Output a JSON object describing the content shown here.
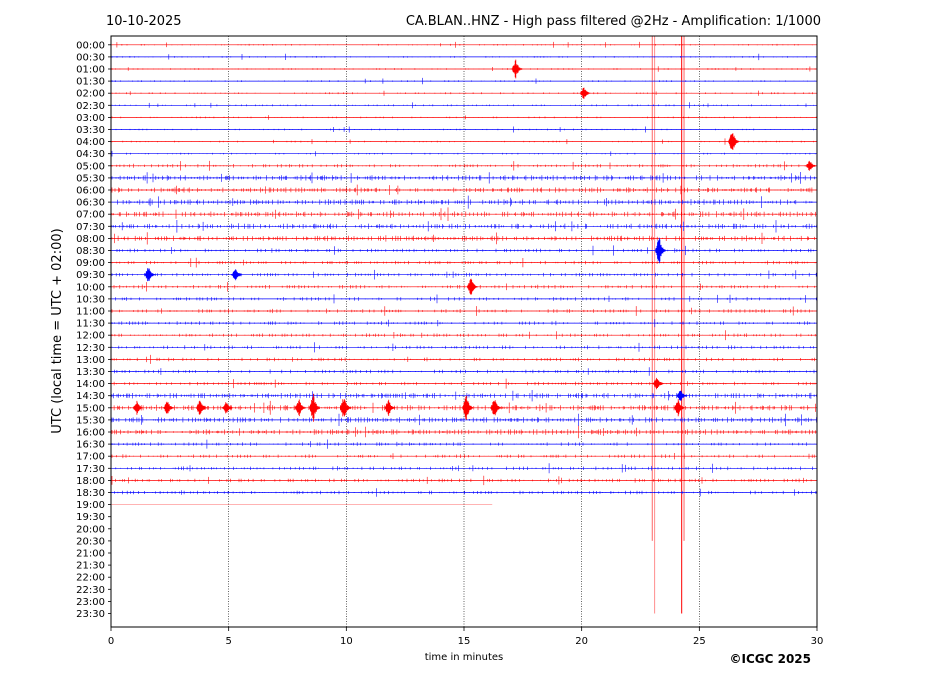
{
  "chart_data": {
    "type": "line",
    "date": "10-10-2025",
    "title": "CA.BLAN..HNZ - High pass filtered @2Hz - Amplification: 1/1000",
    "xlabel": "time in minutes",
    "ylabel": "UTC (local time = UTC + 02:00)",
    "copyright": "©ICGC 2025",
    "xlim": [
      0,
      30
    ],
    "x_ticks": [
      "0",
      "5",
      "10",
      "15",
      "20",
      "25",
      "30"
    ],
    "x_tick_values": [
      0,
      5,
      10,
      15,
      20,
      25,
      30
    ],
    "vertical_gridlines_at": [
      5,
      10,
      15,
      20,
      25
    ],
    "rows": [
      "00:00",
      "00:30",
      "01:00",
      "01:30",
      "02:00",
      "02:30",
      "03:00",
      "03:30",
      "04:00",
      "04:30",
      "05:00",
      "05:30",
      "06:00",
      "06:30",
      "07:00",
      "07:30",
      "08:00",
      "08:30",
      "09:00",
      "09:30",
      "10:00",
      "10:30",
      "11:00",
      "11:30",
      "12:00",
      "12:30",
      "13:00",
      "13:30",
      "14:00",
      "14:30",
      "15:00",
      "15:30",
      "16:00",
      "16:30",
      "17:00",
      "17:30",
      "18:00",
      "18:30",
      "19:00",
      "19:30",
      "20:00",
      "20:30",
      "21:00",
      "21:30",
      "22:00",
      "22:30",
      "23:00",
      "23:30"
    ],
    "trace_colors": [
      "#ff0000",
      "#0000ff"
    ],
    "last_trace_row": "19:00",
    "last_trace_end_minute": 16.2,
    "noise_level": [
      1,
      1,
      1,
      1,
      1,
      1,
      1,
      1,
      1,
      1,
      2,
      3,
      3,
      3,
      3,
      3,
      3,
      2,
      2,
      2,
      2,
      2,
      2,
      2,
      2,
      2,
      2,
      2,
      2,
      3,
      3,
      3,
      3,
      2,
      2,
      2,
      2,
      2,
      0,
      0,
      0,
      0,
      0,
      0,
      0,
      0,
      0,
      0
    ],
    "events": [
      {
        "row": "01:00",
        "minute": 17.2,
        "amplitude": 1.6
      },
      {
        "row": "02:00",
        "minute": 20.1,
        "amplitude": 1.2
      },
      {
        "row": "04:00",
        "minute": 26.4,
        "amplitude": 2.2
      },
      {
        "row": "05:00",
        "minute": 29.7,
        "amplitude": 1.0
      },
      {
        "row": "08:30",
        "minute": 23.3,
        "amplitude": 2.5
      },
      {
        "row": "09:30",
        "minute": 1.6,
        "amplitude": 1.5
      },
      {
        "row": "09:30",
        "minute": 5.3,
        "amplitude": 1.2
      },
      {
        "row": "10:00",
        "minute": 15.3,
        "amplitude": 1.6
      },
      {
        "row": "14:00",
        "minute": 23.2,
        "amplitude": 1.3
      },
      {
        "row": "14:30",
        "minute": 24.2,
        "amplitude": 1.2
      },
      {
        "row": "15:00",
        "minute": 1.1,
        "amplitude": 1.2
      },
      {
        "row": "15:00",
        "minute": 2.4,
        "amplitude": 1.3
      },
      {
        "row": "15:00",
        "minute": 3.8,
        "amplitude": 1.6
      },
      {
        "row": "15:00",
        "minute": 4.9,
        "amplitude": 1.1
      },
      {
        "row": "15:00",
        "minute": 8.0,
        "amplitude": 1.4
      },
      {
        "row": "15:00",
        "minute": 8.6,
        "amplitude": 2.4
      },
      {
        "row": "15:00",
        "minute": 9.9,
        "amplitude": 2.0
      },
      {
        "row": "15:00",
        "minute": 11.8,
        "amplitude": 1.5
      },
      {
        "row": "15:00",
        "minute": 15.1,
        "amplitude": 2.3
      },
      {
        "row": "15:00",
        "minute": 16.3,
        "amplitude": 1.7
      },
      {
        "row": "15:00",
        "minute": 24.1,
        "amplitude": 1.5
      }
    ],
    "spikes": [
      {
        "minute": 23.0,
        "from_row": "00:00",
        "to_row": "20:30",
        "color": "#ff0000",
        "opacity": 0.6
      },
      {
        "minute": 23.1,
        "from_row": "00:00",
        "to_row": "23:30",
        "color": "#ff0000",
        "opacity": 0.45
      },
      {
        "minute": 24.25,
        "from_row": "00:00",
        "to_row": "23:30",
        "color": "#ff0000",
        "opacity": 1.0
      },
      {
        "minute": 24.35,
        "from_row": "00:00",
        "to_row": "20:30",
        "color": "#ff0000",
        "opacity": 0.6
      }
    ]
  }
}
